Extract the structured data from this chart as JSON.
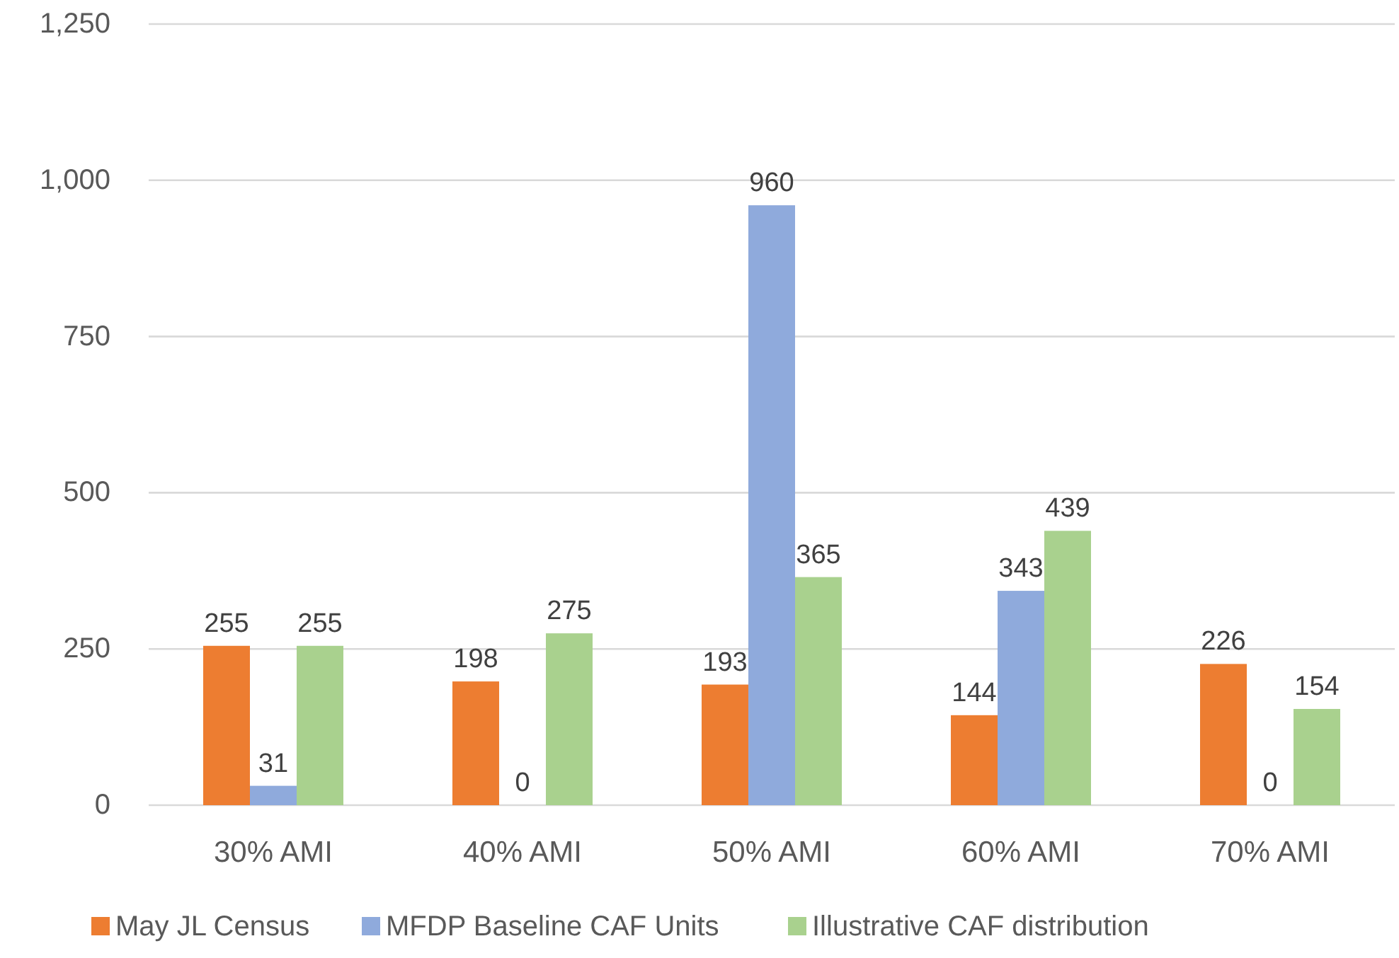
{
  "chart_data": {
    "type": "bar",
    "categories": [
      "30% AMI",
      "40% AMI",
      "50% AMI",
      "60% AMI",
      "70% AMI"
    ],
    "series": [
      {
        "name": "May JL Census",
        "color": "#ed7d31",
        "values": [
          255,
          198,
          193,
          144,
          226
        ]
      },
      {
        "name": "MFDP Baseline CAF Units",
        "color": "#8faadc",
        "values": [
          31,
          0,
          960,
          343,
          0
        ]
      },
      {
        "name": "Illustrative CAF distribution",
        "color": "#a9d18e",
        "values": [
          255,
          275,
          365,
          439,
          154
        ]
      }
    ],
    "ylim": [
      0,
      1250
    ],
    "yticks": [
      {
        "value": 0,
        "label": "0"
      },
      {
        "value": 250,
        "label": "250"
      },
      {
        "value": 500,
        "label": "500"
      },
      {
        "value": 750,
        "label": "750"
      },
      {
        "value": 1000,
        "label": "1,000"
      },
      {
        "value": 1250,
        "label": "1,250"
      }
    ],
    "grid": "y",
    "legend": "bottom",
    "data_labels": true
  }
}
